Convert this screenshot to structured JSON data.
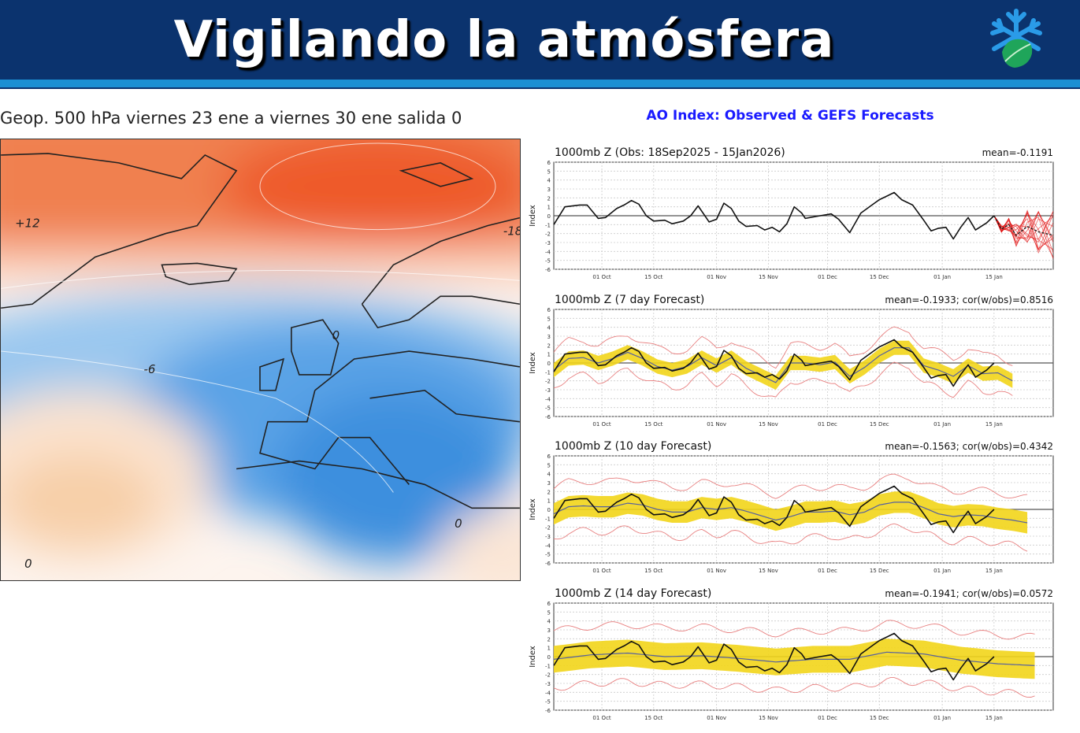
{
  "header": {
    "title": "Vigilando la atmósfera",
    "logo": "snowflake-leaf-logo"
  },
  "map": {
    "title": "Geop. 500 hPa viernes 23 ene a viernes 30 ene salida 0",
    "contour_labels": [
      "+12",
      "0",
      "-6",
      "0",
      "0",
      "-18"
    ]
  },
  "ao": {
    "title": "AO Index: Observed & GEFS Forecasts"
  },
  "colors": {
    "obs": "#111111",
    "ensemble": "#e00000",
    "band": "#f2d51a",
    "envelope": "#e88080",
    "mean": "#5560a0"
  },
  "chart_data": [
    {
      "type": "line",
      "title": "1000mb Z (Obs: 18Sep2025 - 15Jan2026)",
      "stat": "mean=-0.1191",
      "ylabel": "Index",
      "ylim": [
        -6,
        6
      ],
      "yticks": [
        6,
        5,
        4,
        3,
        2,
        1,
        0,
        -1,
        -2,
        -3,
        -4,
        -5,
        -6
      ],
      "xticks": [
        "01 Oct",
        "15 Oct",
        "01 Nov",
        "15 Nov",
        "01 Dec",
        "15 Dec",
        "01 Jan",
        "15 Jan"
      ],
      "xtick_days": [
        13,
        27,
        44,
        58,
        74,
        88,
        105,
        119
      ],
      "xlim_days": [
        0,
        135
      ],
      "x_origin": "18 Sep 2025",
      "observed": {
        "days": [
          0,
          3,
          7,
          9,
          12,
          14,
          17,
          19,
          21,
          23,
          25,
          27,
          30,
          32,
          35,
          37,
          39,
          42,
          44,
          46,
          48,
          50,
          52,
          55,
          57,
          59,
          61,
          63,
          65,
          67,
          68,
          72,
          75,
          77,
          80,
          83,
          86,
          88,
          90,
          92,
          94,
          97,
          100,
          102,
          104,
          106,
          108,
          110,
          112,
          114,
          117,
          119
        ],
        "values": [
          -1,
          1.0,
          1.2,
          1.2,
          -0.3,
          -0.2,
          0.8,
          1.2,
          1.7,
          1.3,
          0,
          -0.6,
          -0.5,
          -0.9,
          -0.6,
          0,
          1.1,
          -0.7,
          -0.4,
          1.4,
          0.8,
          -0.6,
          -1.2,
          -1.1,
          -1.6,
          -1.3,
          -1.8,
          -0.9,
          1.0,
          0.3,
          -0.3,
          0,
          0.2,
          -0.4,
          -1.9,
          0.3,
          1.2,
          1.8,
          2.2,
          2.6,
          1.8,
          1.2,
          -0.5,
          -1.7,
          -1.4,
          -1.3,
          -2.6,
          -1.3,
          -0.2,
          -1.6,
          -0.8,
          0
        ]
      },
      "ensemble_mean": {
        "days": [
          119,
          121,
          123,
          125,
          128,
          131,
          135
        ],
        "values": [
          0,
          -1.5,
          -1.0,
          -2.2,
          -1.2,
          -1.8,
          -2.2
        ]
      },
      "ensemble_spread": [
        0,
        0.4,
        0.8,
        1.4,
        2.0,
        2.6,
        3.0
      ]
    },
    {
      "type": "line",
      "title": "1000mb Z (7 day Forecast)",
      "stat": "mean=-0.1933; cor(w/obs)=0.8516",
      "ylabel": "Index",
      "ylim": [
        -6,
        6
      ],
      "forecast_mean": {
        "days": [
          0,
          4,
          8,
          12,
          16,
          20,
          24,
          28,
          32,
          36,
          40,
          44,
          48,
          52,
          56,
          60,
          64,
          68,
          72,
          76,
          80,
          84,
          88,
          92,
          96,
          100,
          104,
          108,
          112,
          116,
          120,
          124
        ],
        "values": [
          -0.8,
          0.5,
          0.6,
          0,
          0.5,
          1.2,
          0.5,
          -0.4,
          -0.8,
          -0.4,
          0.6,
          -0.3,
          0.6,
          -0.6,
          -1.4,
          -2.2,
          0,
          0,
          -0.2,
          0.1,
          -1.5,
          -0.5,
          0.8,
          1.7,
          1.7,
          -0.3,
          -0.8,
          -1.5,
          -0.3,
          -1.2,
          -1.1,
          -2.0
        ]
      },
      "band_halfwidth": 0.8,
      "envelope_halfwidth": 2.0
    },
    {
      "type": "line",
      "title": "1000mb Z (10 day Forecast)",
      "stat": "mean=-0.1563; cor(w/obs)=0.4342",
      "ylabel": "Index",
      "ylim": [
        -6,
        6
      ],
      "forecast_mean": {
        "days": [
          0,
          4,
          8,
          12,
          16,
          20,
          24,
          28,
          32,
          36,
          40,
          44,
          48,
          52,
          56,
          60,
          64,
          68,
          72,
          76,
          80,
          84,
          88,
          92,
          96,
          100,
          104,
          108,
          112,
          116,
          120,
          124,
          128
        ],
        "values": [
          -0.5,
          0.3,
          0.4,
          0.3,
          0.3,
          0.7,
          0.5,
          0,
          -0.3,
          -0.3,
          0.2,
          0,
          0.2,
          -0.2,
          -0.7,
          -1.2,
          -0.8,
          -0.3,
          -0.3,
          -0.2,
          -0.6,
          -0.3,
          0.5,
          0.8,
          0.8,
          0.2,
          -0.5,
          -0.8,
          -0.6,
          -0.7,
          -1.0,
          -1.2,
          -1.5
        ]
      },
      "band_halfwidth": 1.2,
      "envelope_halfwidth": 2.8
    },
    {
      "type": "line",
      "title": "1000mb Z (14 day Forecast)",
      "stat": "mean=-0.1941; cor(w/obs)=0.0572",
      "ylabel": "Index",
      "ylim": [
        -6,
        6
      ],
      "forecast_mean": {
        "days": [
          0,
          10,
          20,
          30,
          40,
          50,
          60,
          70,
          80,
          90,
          100,
          110,
          120,
          130
        ],
        "values": [
          -0.3,
          0.2,
          0.4,
          0,
          0.1,
          -0.2,
          -0.6,
          -0.3,
          -0.3,
          0.5,
          0.3,
          -0.4,
          -0.8,
          -1.0
        ]
      },
      "band_halfwidth": 1.5,
      "envelope_halfwidth": 3.2
    }
  ]
}
